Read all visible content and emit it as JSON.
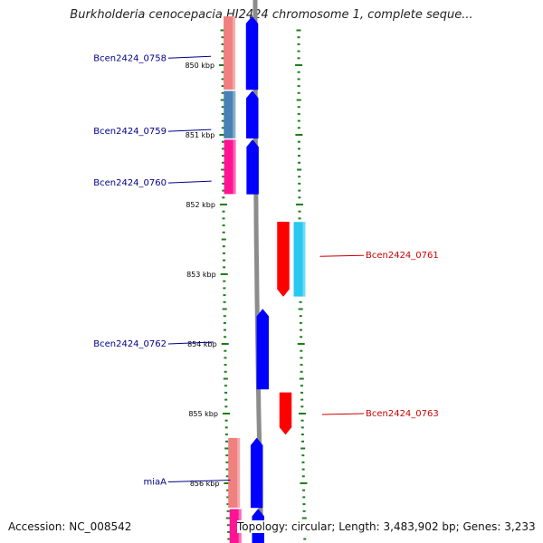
{
  "title": "Burkholderia cenocepacia HI2424 chromosome 1, complete seque...",
  "footer": {
    "accession": "Accession: NC_008542",
    "topology": "Topology: circular; Length: 3,483,902 bp; Genes: 3,233"
  },
  "colors": {
    "forward_gene": "#0000ff",
    "reverse_gene": "#ff0000",
    "cds_light_blue": "#29c8f0",
    "forward_label": "#00008b",
    "reverse_label": "#cc0000",
    "tick": "#1a7f1a",
    "backbone": "#8c8c8c"
  },
  "scale": {
    "start_kbp": 849.35,
    "end_kbp": 856.9,
    "labels": [
      "850 kbp",
      "851 kbp",
      "852 kbp",
      "853 kbp",
      "854 kbp",
      "855 kbp",
      "856 kbp"
    ],
    "label_positions_kbp": [
      850,
      851,
      852,
      853,
      854,
      855,
      856
    ]
  },
  "genes": [
    {
      "name": "Bcen2424_0758",
      "strand": "+",
      "start_kbp": 849.3,
      "end_kbp": 850.35,
      "feature_color": "#f08080",
      "label_kbp": 849.9
    },
    {
      "name": "Bcen2424_0759",
      "strand": "+",
      "start_kbp": 850.37,
      "end_kbp": 851.05,
      "feature_color": "#4682b4",
      "label_kbp": 850.95
    },
    {
      "name": "Bcen2424_0760",
      "strand": "+",
      "start_kbp": 851.07,
      "end_kbp": 851.85,
      "feature_color": "#ff1493",
      "label_kbp": 851.69
    },
    {
      "name": "Bcen2424_0761",
      "strand": "-",
      "start_kbp": 852.25,
      "end_kbp": 853.32,
      "feature_color": "#29c8f0",
      "label_kbp": 852.73
    },
    {
      "name": "Bcen2424_0762",
      "strand": "+",
      "start_kbp": 853.5,
      "end_kbp": 854.65,
      "feature_color": null,
      "label_kbp": 854.0
    },
    {
      "name": "Bcen2424_0763",
      "strand": "-",
      "start_kbp": 854.7,
      "end_kbp": 855.3,
      "feature_color": null,
      "label_kbp": 855.0
    },
    {
      "name": "miaA",
      "strand": "+",
      "start_kbp": 855.35,
      "end_kbp": 856.35,
      "feature_color": "#f08080",
      "label_kbp": 855.98
    },
    {
      "name": "",
      "strand": "+",
      "start_kbp": 856.37,
      "end_kbp": 857.2,
      "feature_color": "#ff1493",
      "label_kbp": null
    }
  ]
}
